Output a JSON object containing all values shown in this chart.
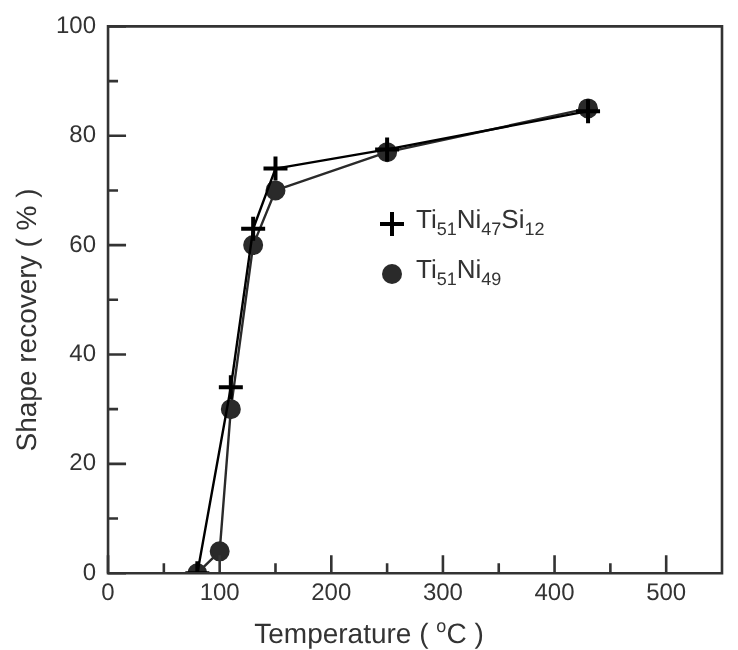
{
  "chart_data": {
    "type": "line",
    "xlabel": "Temperature ( $^{o}$C )",
    "ylabel": "Shape recovery ( % )",
    "xlim": [
      0,
      550
    ],
    "xticks": [
      0,
      {
        "value": 50,
        "label": null
      },
      100,
      {
        "value": 150,
        "label": null
      },
      200,
      {
        "value": 250,
        "label": null
      },
      300,
      {
        "value": 350,
        "label": null
      },
      400,
      {
        "value": 450,
        "label": null
      },
      500
    ],
    "ylim": [
      0,
      100
    ],
    "yticks": [
      0,
      {
        "value": 10,
        "label": null
      },
      20,
      {
        "value": 30,
        "label": null
      },
      40,
      {
        "value": 50,
        "label": null
      },
      60,
      {
        "value": 70,
        "label": null
      },
      80,
      {
        "value": 90,
        "label": null
      },
      100
    ],
    "grid": false,
    "legend": "right",
    "line_style": "solid",
    "series": [
      {
        "name": "Ti$_{51}$Ni$_{47}$Si$_{12}$",
        "color": "#000000",
        "marker": "cross",
        "x": [
          80,
          110,
          130,
          150,
          250,
          430
        ],
        "values": [
          0,
          34,
          63,
          74,
          77.5,
          84.5
        ]
      },
      {
        "name": "Ti$_{51}$Ni$_{49}$",
        "color": "#2a2a2a",
        "marker": "circle",
        "x": [
          80,
          100,
          110,
          130,
          150,
          250,
          430
        ],
        "values": [
          0,
          4,
          30,
          60,
          70,
          77,
          85
        ]
      }
    ]
  }
}
